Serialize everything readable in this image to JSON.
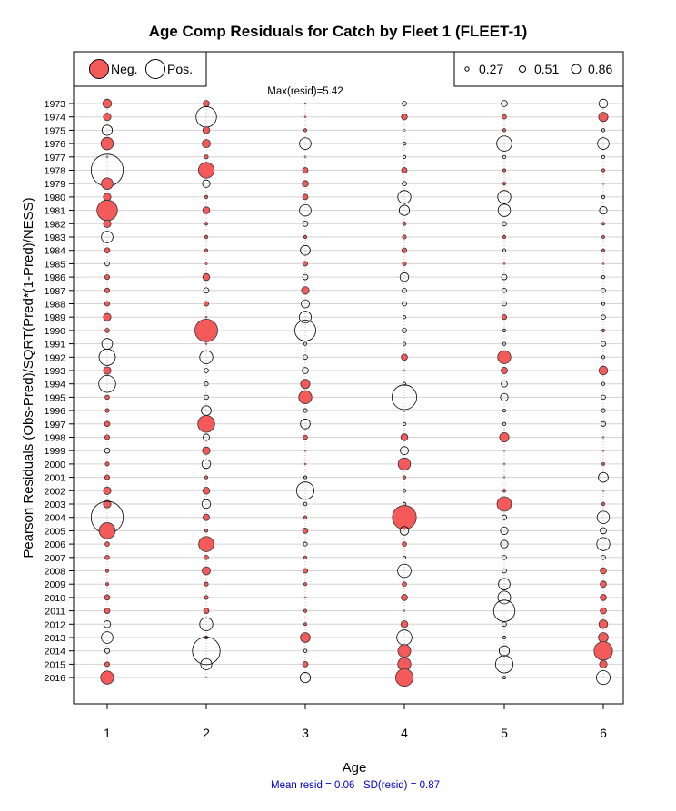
{
  "chart_data": {
    "type": "bubble",
    "title": "Age Comp Residuals for Catch by Fleet 1 (FLEET-1)",
    "xlabel": "Age",
    "ylabel": "Pearson Residuals (Obs-Pred)/SQRT(Pred*(1-Pred)/NESS)",
    "x_ticks": [
      "1",
      "2",
      "3",
      "4",
      "5",
      "6"
    ],
    "years": [
      1973,
      1974,
      1975,
      1976,
      1977,
      1978,
      1979,
      1980,
      1981,
      1982,
      1983,
      1984,
      1985,
      1986,
      1987,
      1988,
      1989,
      1990,
      1991,
      1992,
      1993,
      1994,
      1995,
      1996,
      1997,
      1998,
      1999,
      2000,
      2001,
      2002,
      2003,
      2004,
      2005,
      2006,
      2007,
      2008,
      2009,
      2010,
      2011,
      2012,
      2013,
      2014,
      2015,
      2016
    ],
    "legend_sign": {
      "neg_label": "Neg.",
      "pos_label": "Pos."
    },
    "legend_size": {
      "labels": [
        "0.27",
        "0.51",
        "0.86"
      ],
      "values": [
        0.27,
        0.51,
        0.86
      ]
    },
    "max_resid_label": "Max(resid)=5.42",
    "stats_label": "Mean resid = 0.06   SD(resid) = 0.87",
    "colors": {
      "neg": "#f55a5a",
      "pos": "#ffffff",
      "stroke": "#000000",
      "grid": "#d3d3d3",
      "stats_text": "#0000cc"
    },
    "residuals": {
      "1": [
        -0.4,
        -0.3,
        0.55,
        -0.8,
        0.02,
        5.42,
        -0.7,
        -0.3,
        -2.2,
        -0.3,
        0.7,
        -0.15,
        0.1,
        -0.12,
        -0.12,
        -0.12,
        -0.3,
        -0.1,
        0.6,
        1.4,
        -0.3,
        1.5,
        -0.1,
        -0.08,
        -0.15,
        -0.12,
        0.14,
        -0.08,
        -0.12,
        -0.3,
        -0.3,
        5.4,
        -1.35,
        -0.1,
        -0.1,
        -0.05,
        -0.05,
        -0.15,
        -0.15,
        0.25,
        0.7,
        0.12,
        -0.12,
        -0.9
      ],
      "2": [
        -0.2,
        2.2,
        -0.25,
        -0.35,
        -0.08,
        -1.3,
        0.3,
        -0.05,
        -0.25,
        -0.05,
        -0.05,
        -0.05,
        -0.03,
        -0.25,
        0.15,
        -0.12,
        -0.02,
        -2.7,
        -0.02,
        0.9,
        0.1,
        0.08,
        0.1,
        0.5,
        -1.5,
        0.22,
        -0.3,
        0.4,
        -0.05,
        -0.25,
        0.4,
        -0.22,
        -0.05,
        -1.2,
        -0.1,
        -0.35,
        -0.08,
        -0.08,
        -0.15,
        0.9,
        -0.05,
        4.0,
        0.65,
        0.0
      ],
      "3": [
        -0.02,
        -0.02,
        -0.05,
        0.7,
        0.02,
        -0.15,
        -0.2,
        -0.15,
        0.7,
        0.15,
        -0.05,
        0.5,
        -0.12,
        0.15,
        -0.3,
        0.35,
        0.75,
        2.3,
        0.05,
        0.1,
        0.2,
        -0.45,
        -0.9,
        0.08,
        0.5,
        -0.1,
        -0.02,
        -0.02,
        0.04,
        1.6,
        0.06,
        -0.05,
        -0.15,
        0.08,
        -0.05,
        -0.12,
        -0.05,
        -0.02,
        -0.05,
        -0.04,
        -0.5,
        0.06,
        -0.15,
        0.55
      ],
      "4": [
        0.1,
        -0.18,
        0.03,
        0.06,
        0.05,
        -0.15,
        0.1,
        0.9,
        0.55,
        -0.06,
        -0.08,
        -0.12,
        -0.08,
        0.4,
        0.1,
        0.1,
        0.05,
        0.1,
        0.05,
        -0.2,
        0.02,
        0.05,
        3.2,
        0.03,
        0.05,
        -0.25,
        0.35,
        -0.8,
        -0.05,
        0.05,
        0.05,
        -3.0,
        0.4,
        -0.1,
        0.05,
        0.95,
        -0.1,
        -0.2,
        0.02,
        -0.25,
        1.2,
        -0.85,
        -0.9,
        -1.6
      ],
      "5": [
        0.2,
        -0.1,
        -0.05,
        1.2,
        0.05,
        -0.05,
        -0.05,
        0.9,
        0.8,
        0.1,
        -0.05,
        0.05,
        -0.02,
        0.15,
        0.1,
        0.1,
        -0.12,
        0.05,
        0.05,
        -0.9,
        -0.22,
        0.2,
        0.3,
        0.05,
        0.05,
        -0.45,
        0.02,
        0.02,
        0.02,
        -0.05,
        -1.1,
        0.12,
        0.3,
        0.3,
        0.1,
        0.1,
        0.7,
        0.85,
        2.4,
        0.1,
        0.05,
        0.55,
        1.6,
        0.04
      ],
      "6": [
        0.4,
        -0.45,
        0.05,
        0.7,
        0.05,
        -0.05,
        0.02,
        0.05,
        0.3,
        -0.04,
        -0.04,
        -0.04,
        -0.02,
        0.05,
        0.1,
        0.05,
        0.1,
        -0.05,
        0.12,
        0.05,
        -0.4,
        0.05,
        0.1,
        0.08,
        0.12,
        0.02,
        -0.02,
        -0.04,
        0.5,
        0.02,
        -0.05,
        0.8,
        0.2,
        0.9,
        0.1,
        -0.2,
        -0.2,
        -0.2,
        -0.2,
        -0.4,
        -0.5,
        -1.8,
        -0.3,
        1.0
      ]
    }
  }
}
